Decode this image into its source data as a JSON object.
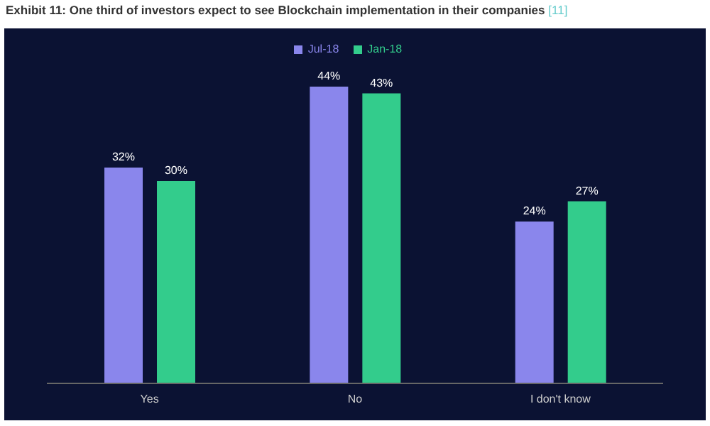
{
  "chart_data": {
    "type": "bar",
    "title": "Exhibit 11: One third of investors expect to see Blockchain implementation in their companies",
    "annotations": [
      "[11]"
    ],
    "categories": [
      "Yes",
      "No",
      "I don't know"
    ],
    "series": [
      {
        "name": "Jul-18",
        "color": "#8a86ec",
        "values": [
          32,
          44,
          24
        ],
        "value_labels": [
          "32%",
          "44%",
          "24%"
        ]
      },
      {
        "name": "Jan-18",
        "color": "#33cc8c",
        "values": [
          30,
          43,
          27
        ],
        "value_labels": [
          "30%",
          "43%",
          "27%"
        ]
      }
    ],
    "legend": "top",
    "grid": false
  }
}
